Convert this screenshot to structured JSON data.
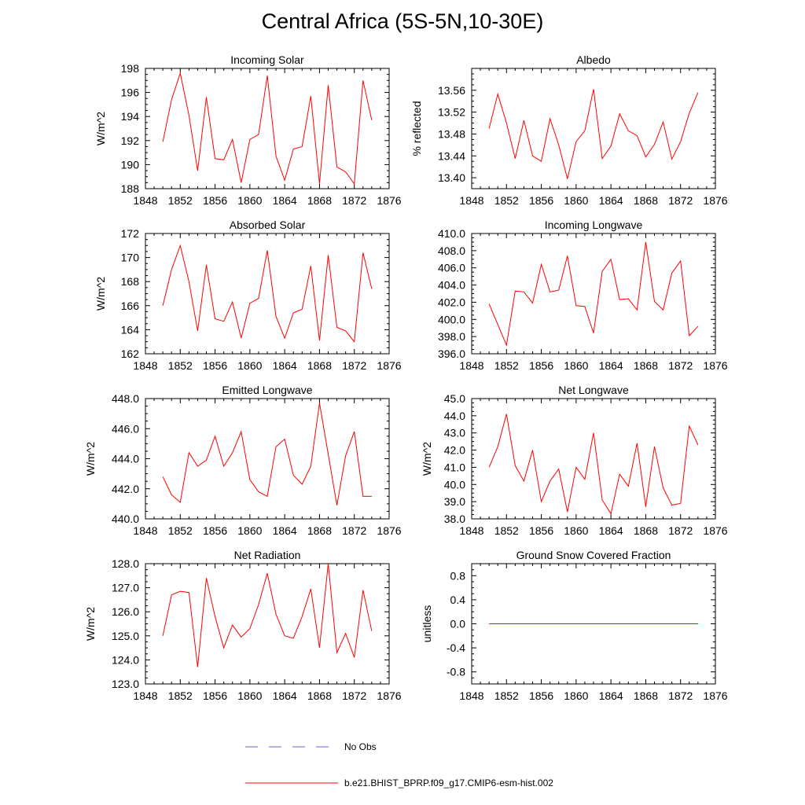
{
  "title": "Central Africa (5S-5N,10-30E)",
  "legend": [
    {
      "label": "No Obs",
      "color": "#6666cc",
      "dash": true
    },
    {
      "label": "b.e21.BHIST_BPRP.f09_g17.CMIP6-esm-hist.002",
      "color": "#ff0000",
      "dash": false
    }
  ],
  "chart_data": [
    {
      "type": "line",
      "title": "Incoming Solar",
      "ylabel": "W/m^2",
      "xlim": [
        1848,
        1876
      ],
      "ylim": [
        188,
        198
      ],
      "xticks": [
        "1848",
        "1852",
        "1856",
        "1860",
        "1864",
        "1868",
        "1872",
        "1876"
      ],
      "yticks": [
        "188",
        "190",
        "192",
        "194",
        "196",
        "198"
      ],
      "x": [
        1850,
        1851,
        1852,
        1853,
        1854,
        1855,
        1856,
        1857,
        1858,
        1859,
        1860,
        1861,
        1862,
        1863,
        1864,
        1865,
        1866,
        1867,
        1868,
        1869,
        1870,
        1871,
        1872,
        1873,
        1874
      ],
      "series": [
        {
          "color": "#ff0000",
          "values": [
            191.9,
            195.4,
            197.6,
            194.1,
            189.5,
            195.6,
            190.5,
            190.4,
            192.1,
            188.5,
            192.1,
            192.5,
            197.4,
            190.7,
            188.7,
            191.3,
            191.5,
            195.7,
            188.4,
            196.6,
            189.8,
            189.4,
            188.4,
            197.0,
            193.7
          ]
        }
      ]
    },
    {
      "type": "line",
      "title": "Albedo",
      "ylabel": "% reflected",
      "xlim": [
        1848,
        1876
      ],
      "ylim": [
        13.38,
        13.6
      ],
      "xticks": [
        "1848",
        "1852",
        "1856",
        "1860",
        "1864",
        "1868",
        "1872",
        "1876"
      ],
      "yticks": [
        "13.40",
        "13.44",
        "13.48",
        "13.52",
        "13.56"
      ],
      "x": [
        1850,
        1851,
        1852,
        1853,
        1854,
        1855,
        1856,
        1857,
        1858,
        1859,
        1860,
        1861,
        1862,
        1863,
        1864,
        1865,
        1866,
        1867,
        1868,
        1869,
        1870,
        1871,
        1872,
        1873,
        1874
      ],
      "series": [
        {
          "color": "#ff0000",
          "values": [
            13.49,
            13.553,
            13.5,
            13.435,
            13.505,
            13.44,
            13.43,
            13.508,
            13.46,
            13.398,
            13.466,
            13.486,
            13.562,
            13.435,
            13.458,
            13.517,
            13.486,
            13.477,
            13.438,
            13.461,
            13.502,
            13.434,
            13.466,
            13.518,
            13.556
          ]
        }
      ]
    },
    {
      "type": "line",
      "title": "Absorbed Solar",
      "ylabel": "W/m^2",
      "xlim": [
        1848,
        1876
      ],
      "ylim": [
        162,
        172
      ],
      "xticks": [
        "1848",
        "1852",
        "1856",
        "1860",
        "1864",
        "1868",
        "1872",
        "1876"
      ],
      "yticks": [
        "162",
        "164",
        "166",
        "168",
        "170",
        "172"
      ],
      "x": [
        1850,
        1851,
        1852,
        1853,
        1854,
        1855,
        1856,
        1857,
        1858,
        1859,
        1860,
        1861,
        1862,
        1863,
        1864,
        1865,
        1866,
        1867,
        1868,
        1869,
        1870,
        1871,
        1872,
        1873,
        1874
      ],
      "series": [
        {
          "color": "#ff0000",
          "values": [
            166.0,
            169.0,
            171.0,
            168.0,
            163.9,
            169.4,
            164.9,
            164.7,
            166.3,
            163.3,
            166.2,
            166.6,
            170.6,
            165.1,
            163.3,
            165.4,
            165.7,
            169.3,
            163.1,
            170.2,
            164.2,
            163.9,
            163.0,
            170.4,
            167.4
          ]
        }
      ]
    },
    {
      "type": "line",
      "title": "Incoming Longwave",
      "ylabel": "",
      "xlim": [
        1848,
        1876
      ],
      "ylim": [
        396,
        410
      ],
      "xticks": [
        "1848",
        "1852",
        "1856",
        "1860",
        "1864",
        "1868",
        "1872",
        "1876"
      ],
      "yticks": [
        "396.0",
        "398.0",
        "400.0",
        "402.0",
        "404.0",
        "406.0",
        "408.0",
        "410.0"
      ],
      "x": [
        1850,
        1851,
        1852,
        1853,
        1854,
        1855,
        1856,
        1857,
        1858,
        1859,
        1860,
        1861,
        1862,
        1863,
        1864,
        1865,
        1866,
        1867,
        1868,
        1869,
        1870,
        1871,
        1872,
        1873,
        1874
      ],
      "series": [
        {
          "color": "#ff0000",
          "values": [
            401.8,
            399.4,
            397.0,
            403.3,
            403.2,
            401.9,
            406.4,
            403.2,
            403.4,
            407.4,
            401.6,
            401.5,
            398.4,
            405.6,
            407.0,
            402.3,
            402.4,
            401.1,
            409.0,
            402.1,
            401.1,
            405.4,
            406.8,
            398.1,
            399.2
          ]
        }
      ]
    },
    {
      "type": "line",
      "title": "Emitted Longwave",
      "ylabel": "W/m^2",
      "xlim": [
        1848,
        1876
      ],
      "ylim": [
        440,
        448
      ],
      "xticks": [
        "1848",
        "1852",
        "1856",
        "1860",
        "1864",
        "1868",
        "1872",
        "1876"
      ],
      "yticks": [
        "440.0",
        "442.0",
        "444.0",
        "446.0",
        "448.0"
      ],
      "x": [
        1850,
        1851,
        1852,
        1853,
        1854,
        1855,
        1856,
        1857,
        1858,
        1859,
        1860,
        1861,
        1862,
        1863,
        1864,
        1865,
        1866,
        1867,
        1868,
        1869,
        1870,
        1871,
        1872,
        1873,
        1874
      ],
      "series": [
        {
          "color": "#ff0000",
          "values": [
            442.8,
            441.6,
            441.1,
            444.4,
            443.5,
            443.9,
            445.5,
            443.5,
            444.4,
            445.8,
            442.6,
            441.8,
            441.5,
            444.8,
            445.3,
            442.9,
            442.3,
            443.5,
            447.7,
            444.3,
            440.9,
            444.2,
            445.8,
            441.5,
            441.5
          ]
        }
      ]
    },
    {
      "type": "line",
      "title": "Net Longwave",
      "ylabel": "W/m^2",
      "xlim": [
        1848,
        1876
      ],
      "ylim": [
        38,
        45
      ],
      "xticks": [
        "1848",
        "1852",
        "1856",
        "1860",
        "1864",
        "1868",
        "1872",
        "1876"
      ],
      "yticks": [
        "38.0",
        "39.0",
        "40.0",
        "41.0",
        "42.0",
        "43.0",
        "44.0",
        "45.0"
      ],
      "x": [
        1850,
        1851,
        1852,
        1853,
        1854,
        1855,
        1856,
        1857,
        1858,
        1859,
        1860,
        1861,
        1862,
        1863,
        1864,
        1865,
        1866,
        1867,
        1868,
        1869,
        1870,
        1871,
        1872,
        1873,
        1874
      ],
      "series": [
        {
          "color": "#ff0000",
          "values": [
            41.0,
            42.2,
            44.1,
            41.1,
            40.2,
            42.0,
            39.0,
            40.2,
            40.9,
            38.4,
            41.0,
            40.3,
            43.0,
            39.1,
            38.3,
            40.6,
            39.9,
            42.4,
            38.7,
            42.2,
            39.8,
            38.8,
            38.9,
            43.4,
            42.3
          ]
        }
      ]
    },
    {
      "type": "line",
      "title": "Net Radiation",
      "ylabel": "W/m^2",
      "xlim": [
        1848,
        1876
      ],
      "ylim": [
        123,
        128
      ],
      "xticks": [
        "1848",
        "1852",
        "1856",
        "1860",
        "1864",
        "1868",
        "1872",
        "1876"
      ],
      "yticks": [
        "123.0",
        "124.0",
        "125.0",
        "126.0",
        "127.0",
        "128.0"
      ],
      "x": [
        1850,
        1851,
        1852,
        1853,
        1854,
        1855,
        1856,
        1857,
        1858,
        1859,
        1860,
        1861,
        1862,
        1863,
        1864,
        1865,
        1866,
        1867,
        1868,
        1869,
        1870,
        1871,
        1872,
        1873,
        1874
      ],
      "series": [
        {
          "color": "#ff0000",
          "values": [
            125.0,
            126.7,
            126.85,
            126.8,
            123.7,
            127.4,
            125.8,
            124.5,
            125.45,
            124.95,
            125.3,
            126.3,
            127.6,
            125.9,
            125.0,
            124.9,
            125.8,
            126.95,
            124.5,
            128.0,
            124.3,
            125.1,
            124.1,
            126.9,
            125.2
          ]
        }
      ]
    },
    {
      "type": "line",
      "title": "Ground Snow Covered Fraction",
      "ylabel": "unitless",
      "xlim": [
        1848,
        1876
      ],
      "ylim": [
        -1.0,
        1.0
      ],
      "xticks": [
        "1848",
        "1852",
        "1856",
        "1860",
        "1864",
        "1868",
        "1872",
        "1876"
      ],
      "yticks": [
        "-0.8",
        "-0.4",
        "0.0",
        "0.4",
        "0.8"
      ],
      "x": [
        1850,
        1851,
        1852,
        1853,
        1854,
        1855,
        1856,
        1857,
        1858,
        1859,
        1860,
        1861,
        1862,
        1863,
        1864,
        1865,
        1866,
        1867,
        1868,
        1869,
        1870,
        1871,
        1872,
        1873,
        1874
      ],
      "series": [
        {
          "color": "#ff0000",
          "values": [
            0,
            0,
            0,
            0,
            0,
            0,
            0,
            0,
            0,
            0,
            0,
            0,
            0,
            0,
            0,
            0,
            0,
            0,
            0,
            0,
            0,
            0,
            0,
            0,
            0
          ]
        }
      ]
    }
  ]
}
